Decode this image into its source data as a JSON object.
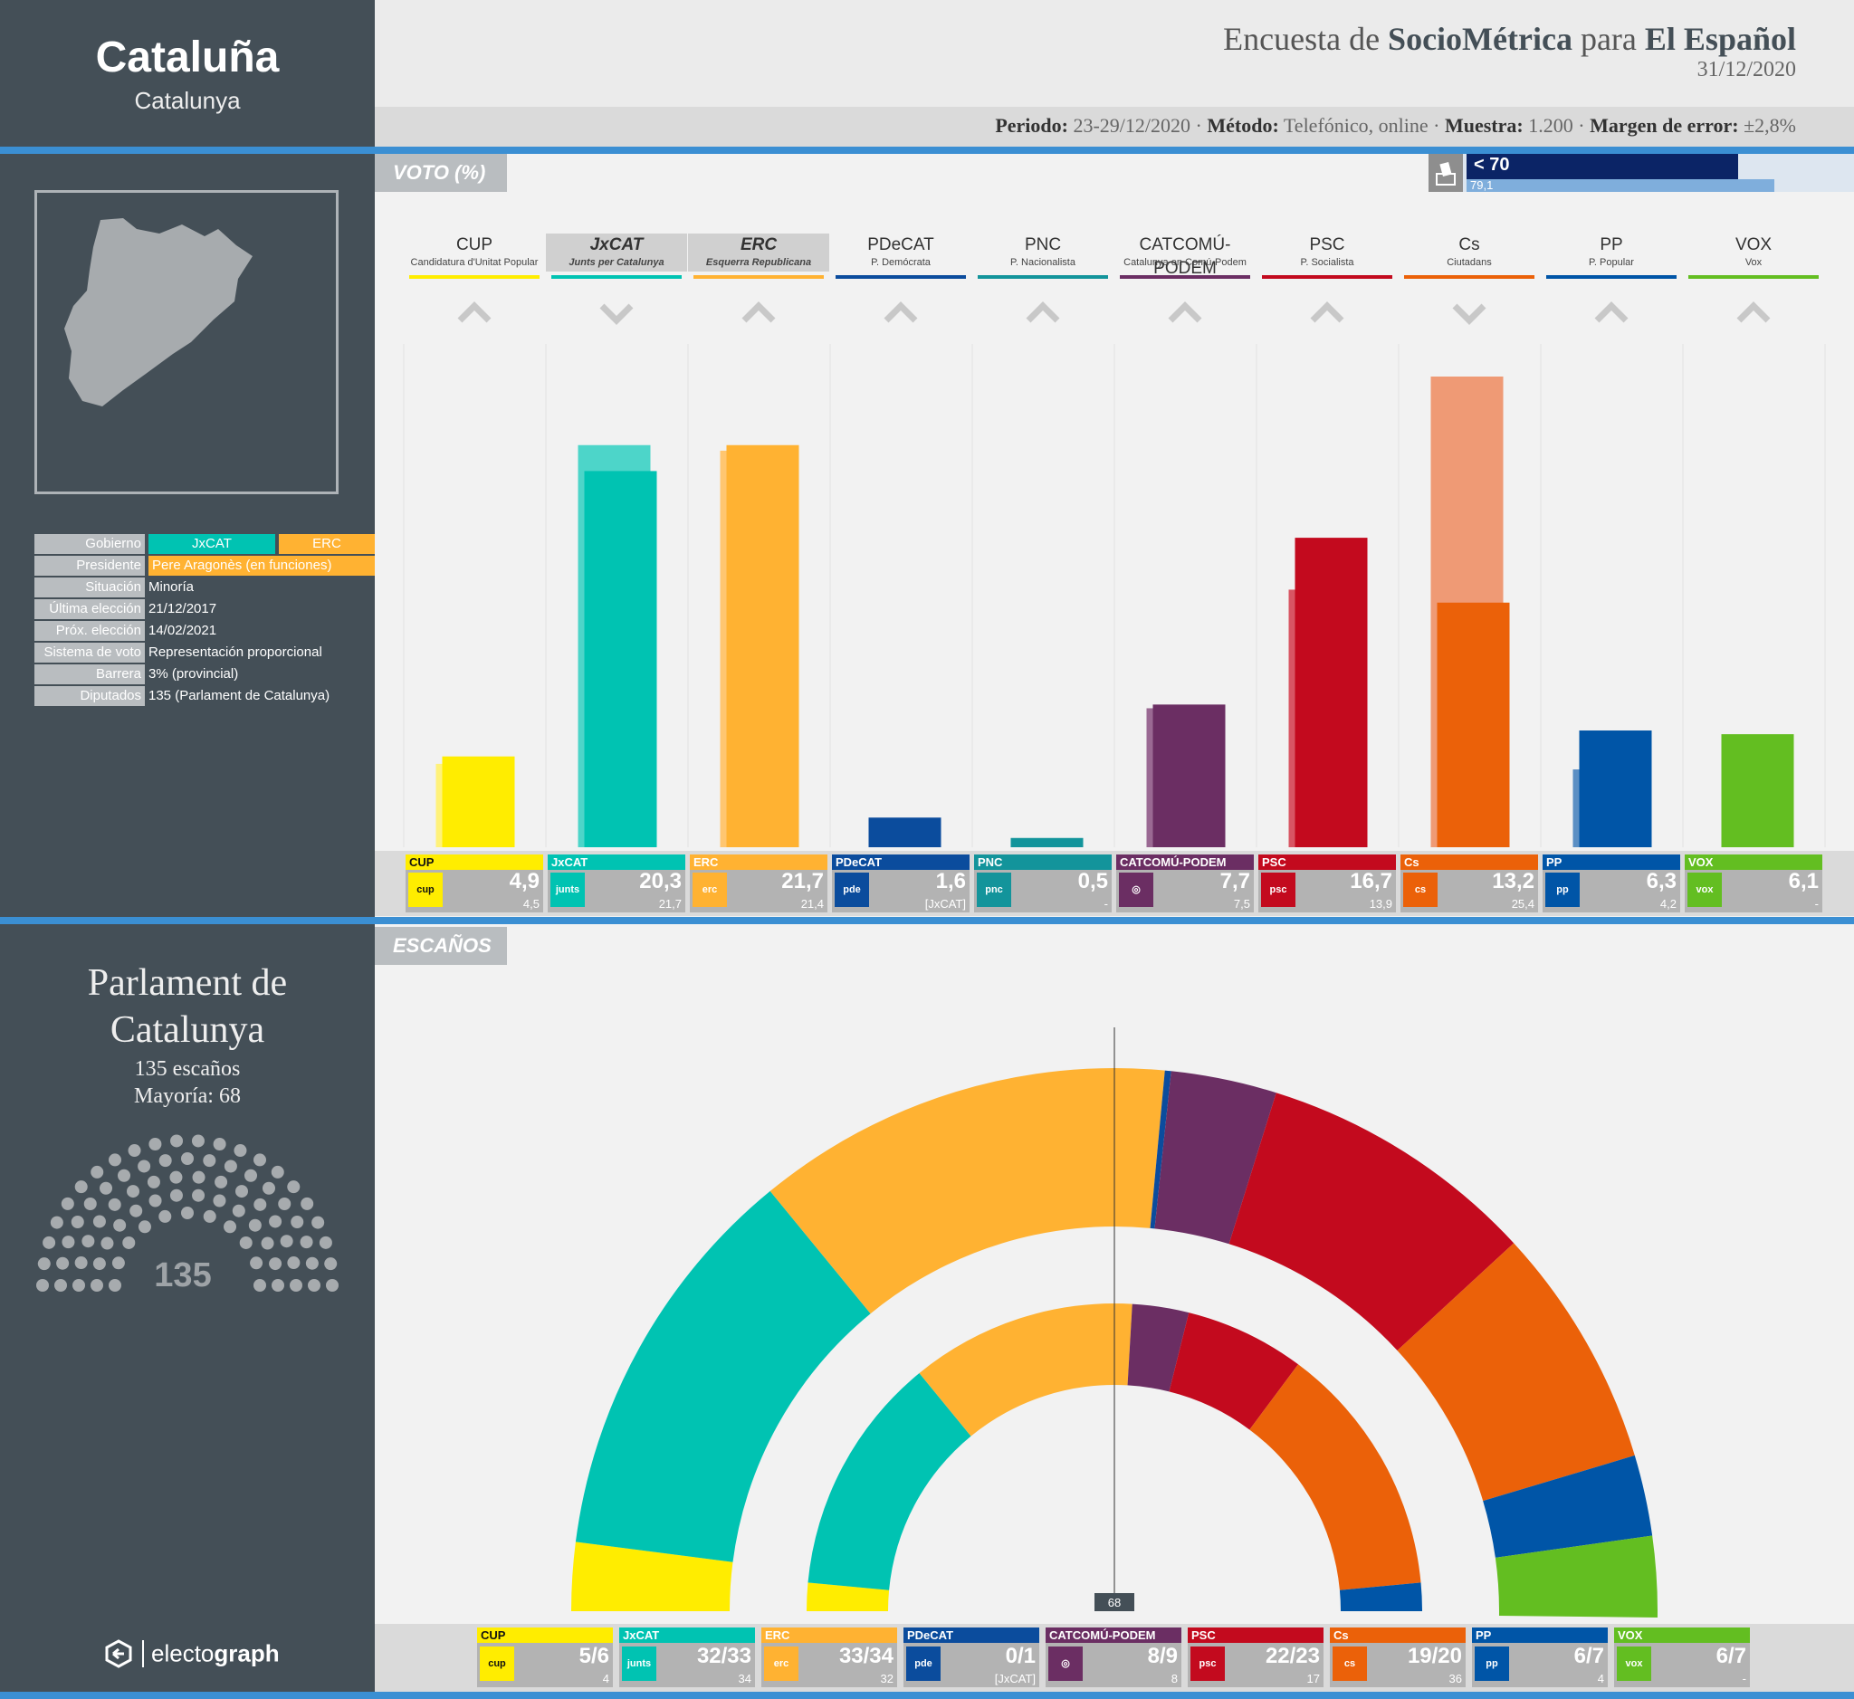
{
  "region": {
    "name": "Cataluña",
    "local_name": "Catalunya"
  },
  "header": {
    "title_pre": "Encuesta de ",
    "pollster": "SocioMétrica",
    "title_mid": " para ",
    "media": "El Español",
    "date": "31/12/2020",
    "meta": {
      "periodo_label": "Periodo:",
      "periodo": "23-29/12/2020",
      "metodo_label": "Método:",
      "metodo": "Telefónico, online",
      "muestra_label": "Muestra:",
      "muestra": "1.200",
      "margen_label": "Margen de error:",
      "margen": "±2,8%"
    }
  },
  "participation": {
    "estimate": "< 70",
    "previous": "79,1"
  },
  "tabs": {
    "voto": "VOTO (%)",
    "escanos": "ESCAÑOS"
  },
  "info": [
    {
      "key": "Gobierno",
      "value": ""
    },
    {
      "key": "Presidente",
      "value": "Pere Aragonès (en funciones)"
    },
    {
      "key": "Situación",
      "value": "Minoría"
    },
    {
      "key": "Última elección",
      "value": "21/12/2017"
    },
    {
      "key": "Próx. elección",
      "value": "14/02/2021"
    },
    {
      "key": "Sistema de voto",
      "value": "Representación proporcional"
    },
    {
      "key": "Barrera",
      "value": "3% (provincial)"
    },
    {
      "key": "Diputados",
      "value": "135 (Parlament de Catalunya)"
    }
  ],
  "government": [
    "JxCAT",
    "ERC"
  ],
  "parliament": {
    "name_line1": "Parlament de",
    "name_line2": "Catalunya",
    "seats": "135 escaños",
    "majority": "Mayoría: 68",
    "total": "135",
    "majority_mark": "68"
  },
  "brand": {
    "name_light": "electo",
    "name_bold": "graph"
  },
  "colors": {
    "CUP": "#ffed00",
    "JxCAT": "#00c3b2",
    "ERC": "#ffb232",
    "PDeCAT": "#0b4c9d",
    "PNC": "#13949b",
    "CATCOMU": "#6b2e63",
    "PSC": "#c30a1e",
    "Cs": "#eb6109",
    "PP": "#0055a7",
    "VOX": "#63be21"
  },
  "chart_data": [
    {
      "type": "bar",
      "title": "VOTO (%)",
      "categories": [
        "CUP",
        "JxCAT",
        "ERC",
        "PDeCAT",
        "PNC",
        "CATCOMÚ-PODEM",
        "PSC",
        "Cs",
        "PP",
        "VOX"
      ],
      "full_names": [
        "Candidatura d'Unitat Popular",
        "Junts per Catalunya",
        "Esquerra Republicana",
        "P. Demócrata",
        "P. Nacionalista",
        "Catalunya en Comú-Podem",
        "P. Socialista",
        "Ciutadans",
        "P. Popular",
        "Vox"
      ],
      "series": [
        {
          "name": "",
          "values": [
            4.9,
            20.3,
            21.7,
            1.6,
            0.5,
            7.7,
            16.7,
            13.2,
            6.3,
            6.1
          ]
        },
        {
          "name": "",
          "values": [
            4.5,
            21.7,
            21.4,
            null,
            null,
            7.5,
            13.9,
            25.4,
            4.2,
            null
          ]
        }
      ],
      "previous_labels": [
        "4,5",
        "21,7",
        "21,4",
        "[JxCAT]",
        "-",
        "7,5",
        "13,9",
        "25,4",
        "4,2",
        "-"
      ],
      "value_labels": [
        "4,9",
        "20,3",
        "21,7",
        "1,6",
        "0,5",
        "7,7",
        "16,7",
        "13,2",
        "6,3",
        "6,1"
      ],
      "trend": [
        "up",
        "down",
        "up",
        "up",
        "up",
        "up",
        "up",
        "down",
        "up",
        "up"
      ],
      "ylim": [
        0,
        25.4
      ]
    },
    {
      "type": "pie",
      "title": "ESCAÑOS",
      "categories": [
        "CUP",
        "JxCAT",
        "ERC",
        "PDeCAT",
        "CATCOMÚ-PODEM",
        "PSC",
        "Cs",
        "PP",
        "VOX"
      ],
      "seat_labels": [
        "5/6",
        "32/33",
        "33/34",
        "0/1",
        "8/9",
        "22/23",
        "19/20",
        "6/7",
        "6/7"
      ],
      "previous_labels": [
        "4",
        "34",
        "32",
        "[JxCAT]",
        "8",
        "17",
        "36",
        "4",
        "-"
      ],
      "series": [
        {
          "name": "",
          "values": [
            5.5,
            32.5,
            33.5,
            0.5,
            8.5,
            22.5,
            19.5,
            6.5,
            6.5
          ]
        },
        {
          "name": "",
          "values": [
            4,
            34,
            32,
            0,
            8,
            17,
            36,
            4,
            0
          ]
        }
      ],
      "total": 135
    }
  ]
}
